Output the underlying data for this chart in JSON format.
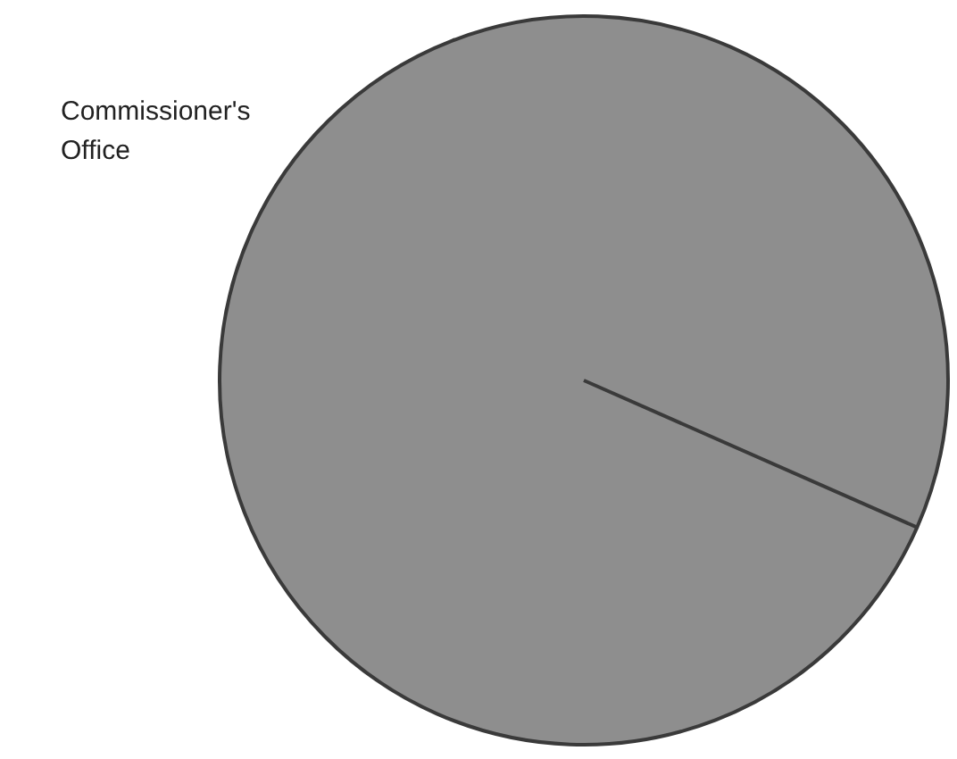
{
  "chart_data": {
    "type": "pie",
    "categories": [
      "Commissioner's Office"
    ],
    "values": [
      100
    ],
    "colors": [
      "#8e8e8e"
    ]
  }
}
